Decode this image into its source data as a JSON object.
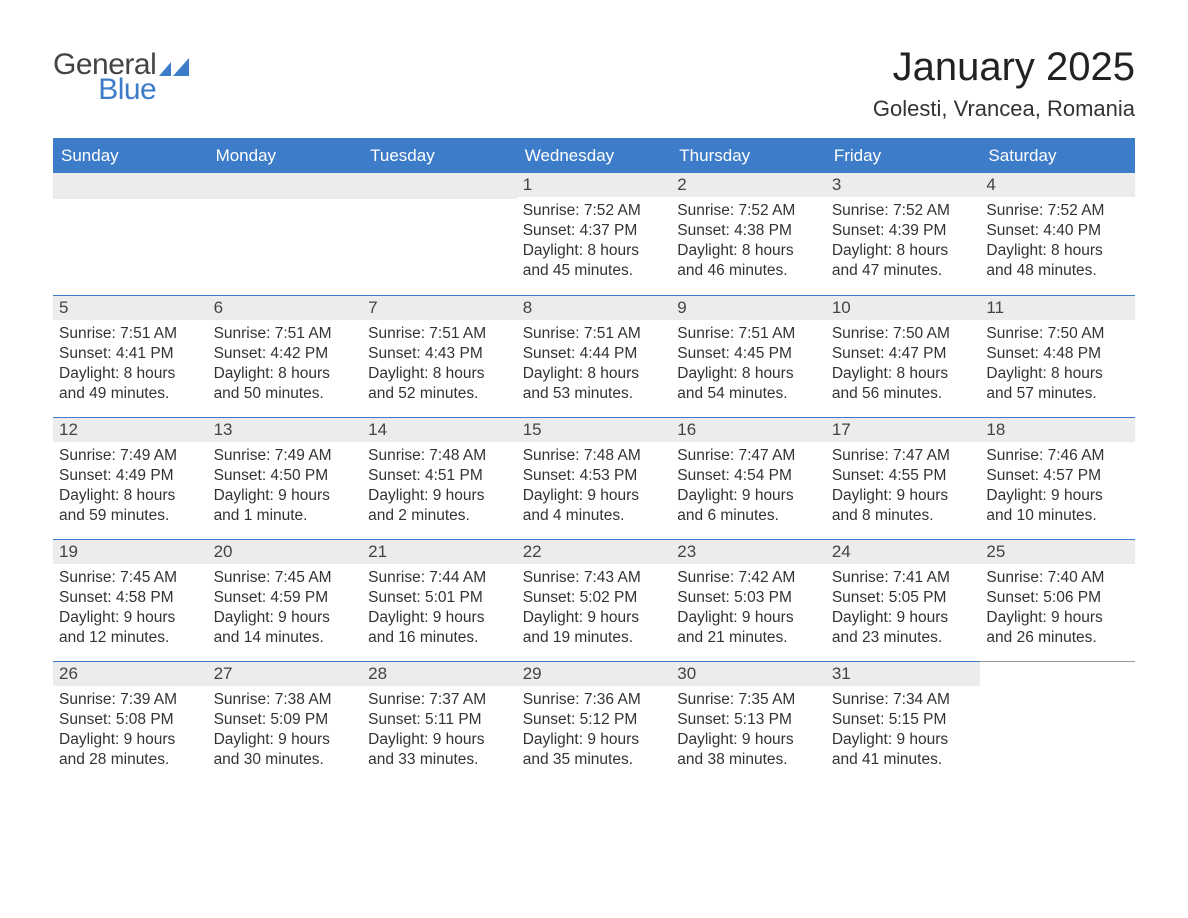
{
  "logo": {
    "general": "General",
    "blue": "Blue",
    "accent_color": "#3d7cc9"
  },
  "title": "January 2025",
  "location": "Golesti, Vrancea, Romania",
  "day_headers": [
    "Sunday",
    "Monday",
    "Tuesday",
    "Wednesday",
    "Thursday",
    "Friday",
    "Saturday"
  ],
  "weeks": [
    [
      {
        "n": "",
        "sunrise": "",
        "sunset": "",
        "daylight1": "",
        "daylight2": ""
      },
      {
        "n": "",
        "sunrise": "",
        "sunset": "",
        "daylight1": "",
        "daylight2": ""
      },
      {
        "n": "",
        "sunrise": "",
        "sunset": "",
        "daylight1": "",
        "daylight2": ""
      },
      {
        "n": "1",
        "sunrise": "Sunrise: 7:52 AM",
        "sunset": "Sunset: 4:37 PM",
        "daylight1": "Daylight: 8 hours",
        "daylight2": "and 45 minutes."
      },
      {
        "n": "2",
        "sunrise": "Sunrise: 7:52 AM",
        "sunset": "Sunset: 4:38 PM",
        "daylight1": "Daylight: 8 hours",
        "daylight2": "and 46 minutes."
      },
      {
        "n": "3",
        "sunrise": "Sunrise: 7:52 AM",
        "sunset": "Sunset: 4:39 PM",
        "daylight1": "Daylight: 8 hours",
        "daylight2": "and 47 minutes."
      },
      {
        "n": "4",
        "sunrise": "Sunrise: 7:52 AM",
        "sunset": "Sunset: 4:40 PM",
        "daylight1": "Daylight: 8 hours",
        "daylight2": "and 48 minutes."
      }
    ],
    [
      {
        "n": "5",
        "sunrise": "Sunrise: 7:51 AM",
        "sunset": "Sunset: 4:41 PM",
        "daylight1": "Daylight: 8 hours",
        "daylight2": "and 49 minutes."
      },
      {
        "n": "6",
        "sunrise": "Sunrise: 7:51 AM",
        "sunset": "Sunset: 4:42 PM",
        "daylight1": "Daylight: 8 hours",
        "daylight2": "and 50 minutes."
      },
      {
        "n": "7",
        "sunrise": "Sunrise: 7:51 AM",
        "sunset": "Sunset: 4:43 PM",
        "daylight1": "Daylight: 8 hours",
        "daylight2": "and 52 minutes."
      },
      {
        "n": "8",
        "sunrise": "Sunrise: 7:51 AM",
        "sunset": "Sunset: 4:44 PM",
        "daylight1": "Daylight: 8 hours",
        "daylight2": "and 53 minutes."
      },
      {
        "n": "9",
        "sunrise": "Sunrise: 7:51 AM",
        "sunset": "Sunset: 4:45 PM",
        "daylight1": "Daylight: 8 hours",
        "daylight2": "and 54 minutes."
      },
      {
        "n": "10",
        "sunrise": "Sunrise: 7:50 AM",
        "sunset": "Sunset: 4:47 PM",
        "daylight1": "Daylight: 8 hours",
        "daylight2": "and 56 minutes."
      },
      {
        "n": "11",
        "sunrise": "Sunrise: 7:50 AM",
        "sunset": "Sunset: 4:48 PM",
        "daylight1": "Daylight: 8 hours",
        "daylight2": "and 57 minutes."
      }
    ],
    [
      {
        "n": "12",
        "sunrise": "Sunrise: 7:49 AM",
        "sunset": "Sunset: 4:49 PM",
        "daylight1": "Daylight: 8 hours",
        "daylight2": "and 59 minutes."
      },
      {
        "n": "13",
        "sunrise": "Sunrise: 7:49 AM",
        "sunset": "Sunset: 4:50 PM",
        "daylight1": "Daylight: 9 hours",
        "daylight2": "and 1 minute."
      },
      {
        "n": "14",
        "sunrise": "Sunrise: 7:48 AM",
        "sunset": "Sunset: 4:51 PM",
        "daylight1": "Daylight: 9 hours",
        "daylight2": "and 2 minutes."
      },
      {
        "n": "15",
        "sunrise": "Sunrise: 7:48 AM",
        "sunset": "Sunset: 4:53 PM",
        "daylight1": "Daylight: 9 hours",
        "daylight2": "and 4 minutes."
      },
      {
        "n": "16",
        "sunrise": "Sunrise: 7:47 AM",
        "sunset": "Sunset: 4:54 PM",
        "daylight1": "Daylight: 9 hours",
        "daylight2": "and 6 minutes."
      },
      {
        "n": "17",
        "sunrise": "Sunrise: 7:47 AM",
        "sunset": "Sunset: 4:55 PM",
        "daylight1": "Daylight: 9 hours",
        "daylight2": "and 8 minutes."
      },
      {
        "n": "18",
        "sunrise": "Sunrise: 7:46 AM",
        "sunset": "Sunset: 4:57 PM",
        "daylight1": "Daylight: 9 hours",
        "daylight2": "and 10 minutes."
      }
    ],
    [
      {
        "n": "19",
        "sunrise": "Sunrise: 7:45 AM",
        "sunset": "Sunset: 4:58 PM",
        "daylight1": "Daylight: 9 hours",
        "daylight2": "and 12 minutes."
      },
      {
        "n": "20",
        "sunrise": "Sunrise: 7:45 AM",
        "sunset": "Sunset: 4:59 PM",
        "daylight1": "Daylight: 9 hours",
        "daylight2": "and 14 minutes."
      },
      {
        "n": "21",
        "sunrise": "Sunrise: 7:44 AM",
        "sunset": "Sunset: 5:01 PM",
        "daylight1": "Daylight: 9 hours",
        "daylight2": "and 16 minutes."
      },
      {
        "n": "22",
        "sunrise": "Sunrise: 7:43 AM",
        "sunset": "Sunset: 5:02 PM",
        "daylight1": "Daylight: 9 hours",
        "daylight2": "and 19 minutes."
      },
      {
        "n": "23",
        "sunrise": "Sunrise: 7:42 AM",
        "sunset": "Sunset: 5:03 PM",
        "daylight1": "Daylight: 9 hours",
        "daylight2": "and 21 minutes."
      },
      {
        "n": "24",
        "sunrise": "Sunrise: 7:41 AM",
        "sunset": "Sunset: 5:05 PM",
        "daylight1": "Daylight: 9 hours",
        "daylight2": "and 23 minutes."
      },
      {
        "n": "25",
        "sunrise": "Sunrise: 7:40 AM",
        "sunset": "Sunset: 5:06 PM",
        "daylight1": "Daylight: 9 hours",
        "daylight2": "and 26 minutes."
      }
    ],
    [
      {
        "n": "26",
        "sunrise": "Sunrise: 7:39 AM",
        "sunset": "Sunset: 5:08 PM",
        "daylight1": "Daylight: 9 hours",
        "daylight2": "and 28 minutes."
      },
      {
        "n": "27",
        "sunrise": "Sunrise: 7:38 AM",
        "sunset": "Sunset: 5:09 PM",
        "daylight1": "Daylight: 9 hours",
        "daylight2": "and 30 minutes."
      },
      {
        "n": "28",
        "sunrise": "Sunrise: 7:37 AM",
        "sunset": "Sunset: 5:11 PM",
        "daylight1": "Daylight: 9 hours",
        "daylight2": "and 33 minutes."
      },
      {
        "n": "29",
        "sunrise": "Sunrise: 7:36 AM",
        "sunset": "Sunset: 5:12 PM",
        "daylight1": "Daylight: 9 hours",
        "daylight2": "and 35 minutes."
      },
      {
        "n": "30",
        "sunrise": "Sunrise: 7:35 AM",
        "sunset": "Sunset: 5:13 PM",
        "daylight1": "Daylight: 9 hours",
        "daylight2": "and 38 minutes."
      },
      {
        "n": "31",
        "sunrise": "Sunrise: 7:34 AM",
        "sunset": "Sunset: 5:15 PM",
        "daylight1": "Daylight: 9 hours",
        "daylight2": "and 41 minutes."
      },
      {
        "n": "",
        "sunrise": "",
        "sunset": "",
        "daylight1": "",
        "daylight2": "",
        "trailing": true
      }
    ]
  ],
  "styling": {
    "header_bg": "#3d7cc9",
    "header_text": "#ffffff",
    "daynum_bg": "#ececec",
    "row_border": "#3d7cc9",
    "trailing_border": "#9a9a9a",
    "body_text": "#333333",
    "page_bg": "#ffffff",
    "month_title_fontsize": 40,
    "location_fontsize": 22,
    "header_fontsize": 17,
    "daynum_fontsize": 17,
    "body_fontsize": 15.5
  }
}
